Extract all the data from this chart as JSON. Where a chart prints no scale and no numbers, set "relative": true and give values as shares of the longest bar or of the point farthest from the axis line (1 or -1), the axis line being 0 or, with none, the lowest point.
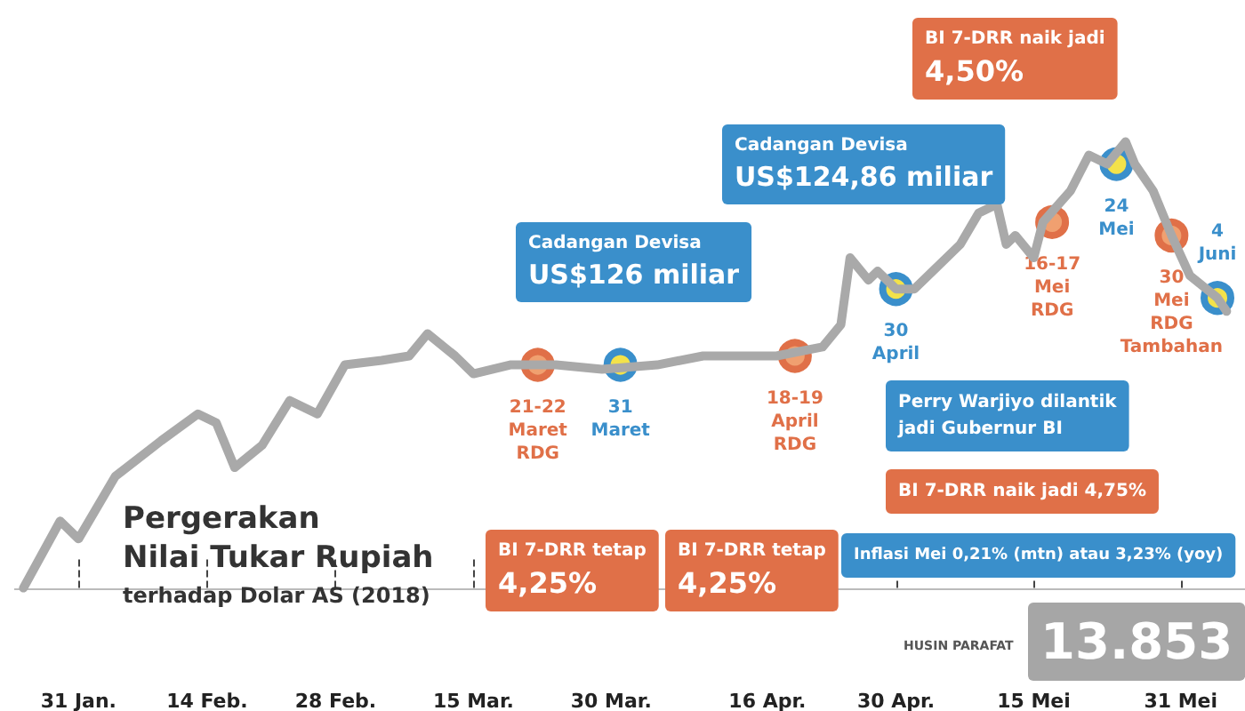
{
  "chart_data": {
    "type": "line",
    "title": "Pergerakan\nNilai Tukar Rupiah",
    "subtitle": "terhadap Dolar AS (2018)",
    "relative": true,
    "marker": "none",
    "grid": false,
    "x": [
      "--01-25",
      "--01-29",
      "--01-31",
      "--02-04",
      "--02-09",
      "--02-13",
      "--02-15",
      "--02-17",
      "--02-20",
      "--02-23",
      "--02-26",
      "--03-01",
      "--03-05",
      "--03-08",
      "--03-10",
      "--03-13",
      "--03-15",
      "--03-19",
      "--03-24",
      "--03-29",
      "--04-04",
      "--04-09",
      "--04-14",
      "--04-17",
      "--04-22",
      "--04-24",
      "--04-25",
      "--04-27",
      "--04-28",
      "--04-30",
      "--05-02",
      "--05-04",
      "--05-07",
      "--05-09",
      "--05-11",
      "--05-12",
      "--05-13",
      "--05-15",
      "--05-16",
      "--05-19",
      "--05-21",
      "--05-23",
      "--05-25",
      "--05-26",
      "--05-28",
      "--05-30",
      "--06-01",
      "--06-04",
      "--06-05"
    ],
    "xlim": [
      "--01-24",
      "--06-07"
    ],
    "xticks": [
      {
        "value": "--01-31",
        "label": "31 Jan."
      },
      {
        "value": "--02-14",
        "label": "14 Feb."
      },
      {
        "value": "--02-28",
        "label": "28 Feb."
      },
      {
        "value": "--03-15",
        "label": "15 Mar."
      },
      {
        "value": "--03-30",
        "label": "30 Mar."
      },
      {
        "value": "--04-16",
        "label": "16 Apr."
      },
      {
        "value": "--04-30",
        "label": "30 Apr."
      },
      {
        "value": "--05-15",
        "label": "15 Mei"
      },
      {
        "value": "--05-31",
        "label": "31 Mei"
      }
    ],
    "series": [
      {
        "color": "#a9a9a9",
        "values": [
          0,
          0.15,
          0.11,
          0.25,
          0.33,
          0.39,
          0.37,
          0.27,
          0.32,
          0.42,
          0.39,
          0.5,
          0.51,
          0.52,
          0.57,
          0.52,
          0.48,
          0.5,
          0.5,
          0.49,
          0.5,
          0.52,
          0.52,
          0.52,
          0.54,
          0.59,
          0.74,
          0.69,
          0.71,
          0.67,
          0.67,
          0.71,
          0.77,
          0.84,
          0.86,
          0.77,
          0.79,
          0.74,
          0.82,
          0.89,
          0.97,
          0.95,
          1,
          0.95,
          0.89,
          0.79,
          0.7,
          0.65,
          0.62
        ]
      }
    ],
    "annotations": [
      {
        "text": "21-22\nMaret\nRDG",
        "x": "--03-22",
        "y": 0.5
      },
      {
        "text": "31\nMaret",
        "x": "--03-31",
        "y": 0.5
      },
      {
        "text": "18-19\nApril\nRDG",
        "x": "--04-19",
        "y": 0.52
      },
      {
        "text": "30\nApril",
        "x": "--04-30",
        "y": 0.67
      },
      {
        "text": "16-17\nMei\nRDG",
        "x": "--05-17",
        "y": 0.82
      },
      {
        "text": "24\nMei",
        "x": "--05-24",
        "y": 0.95
      },
      {
        "text": "30\nMei\nRDG\nTambahan",
        "x": "--05-30",
        "y": 0.79
      },
      {
        "text": "4\nJuni",
        "x": "--06-04",
        "y": 0.65
      },
      "Cadangan Devisa\nUS$126 miliar",
      "Cadangan Devisa\nUS$124,86 miliar",
      "BI 7-DRR naik jadi\n4,50%",
      "BI 7-DRR tetap\n4,25%",
      "BI 7-DRR tetap\n4,25%",
      "Perry Warjiyo dilantik\njadi Gubernur BI",
      "BI 7-DRR naik jadi 4,75%",
      "Inflasi Mei 0,21% (mtn) atau 3,23% (yoy)",
      "13.853",
      "HUSIN PARAFAT"
    ]
  }
}
